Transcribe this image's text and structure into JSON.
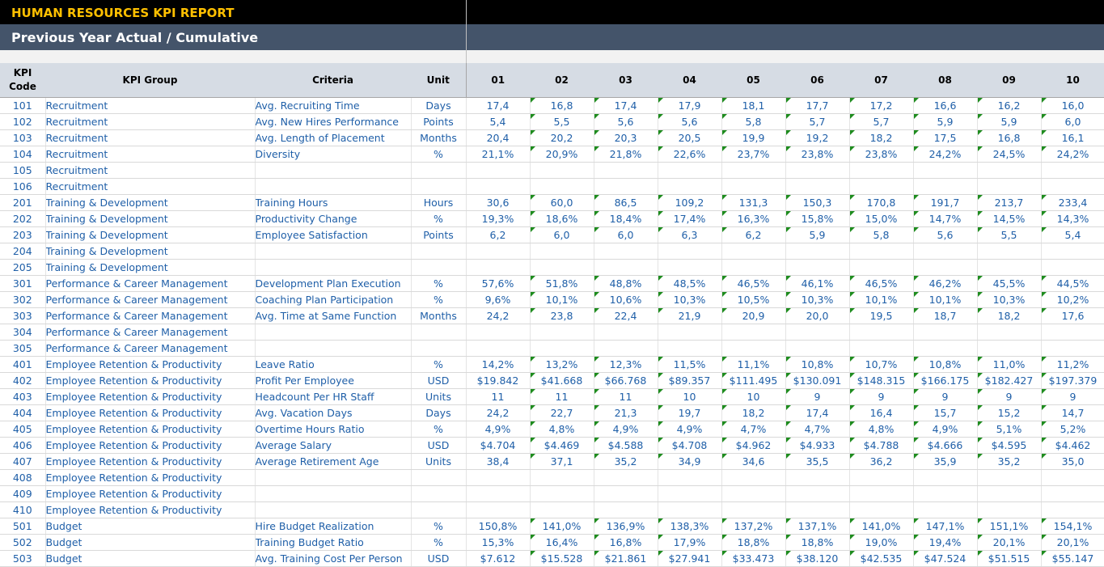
{
  "report": {
    "title": "HUMAN RESOURCES KPI REPORT",
    "subtitle": "Previous Year Actual / Cumulative"
  },
  "colors": {
    "banner_dark": "#000000",
    "title_accent": "#ffc000",
    "subtitle_bg": "#44546a",
    "header_bg": "#d6dce4",
    "cell_text": "#1f5fa8",
    "comment_marker": "#1e8c1e"
  },
  "table": {
    "headers": {
      "code": "KPI Code",
      "group": "KPI Group",
      "criteria": "Criteria",
      "unit": "Unit",
      "months": [
        "01",
        "02",
        "03",
        "04",
        "05",
        "06",
        "07",
        "08",
        "09",
        "10"
      ]
    },
    "rows": [
      {
        "code": "101",
        "group": "Recruitment",
        "criteria": "Avg. Recruiting Time",
        "unit": "Days",
        "values": [
          "17,4",
          "16,8",
          "17,4",
          "17,9",
          "18,1",
          "17,7",
          "17,2",
          "16,6",
          "16,2",
          "16,0"
        ]
      },
      {
        "code": "102",
        "group": "Recruitment",
        "criteria": "Avg. New Hires Performance",
        "unit": "Points",
        "values": [
          "5,4",
          "5,5",
          "5,6",
          "5,6",
          "5,8",
          "5,7",
          "5,7",
          "5,9",
          "5,9",
          "6,0"
        ]
      },
      {
        "code": "103",
        "group": "Recruitment",
        "criteria": "Avg. Length of Placement",
        "unit": "Months",
        "values": [
          "20,4",
          "20,2",
          "20,3",
          "20,5",
          "19,9",
          "19,2",
          "18,2",
          "17,5",
          "16,8",
          "16,1"
        ]
      },
      {
        "code": "104",
        "group": "Recruitment",
        "criteria": "Diversity",
        "unit": "%",
        "values": [
          "21,1%",
          "20,9%",
          "21,8%",
          "22,6%",
          "23,7%",
          "23,8%",
          "23,8%",
          "24,2%",
          "24,5%",
          "24,2%"
        ]
      },
      {
        "code": "105",
        "group": "Recruitment",
        "criteria": "",
        "unit": "",
        "values": [
          "",
          "",
          "",
          "",
          "",
          "",
          "",
          "",
          "",
          ""
        ]
      },
      {
        "code": "106",
        "group": "Recruitment",
        "criteria": "",
        "unit": "",
        "values": [
          "",
          "",
          "",
          "",
          "",
          "",
          "",
          "",
          "",
          ""
        ]
      },
      {
        "code": "201",
        "group": "Training & Development",
        "criteria": "Training Hours",
        "unit": "Hours",
        "values": [
          "30,6",
          "60,0",
          "86,5",
          "109,2",
          "131,3",
          "150,3",
          "170,8",
          "191,7",
          "213,7",
          "233,4"
        ]
      },
      {
        "code": "202",
        "group": "Training & Development",
        "criteria": "Productivity Change",
        "unit": "%",
        "values": [
          "19,3%",
          "18,6%",
          "18,4%",
          "17,4%",
          "16,3%",
          "15,8%",
          "15,0%",
          "14,7%",
          "14,5%",
          "14,3%"
        ]
      },
      {
        "code": "203",
        "group": "Training & Development",
        "criteria": "Employee Satisfaction",
        "unit": "Points",
        "values": [
          "6,2",
          "6,0",
          "6,0",
          "6,3",
          "6,2",
          "5,9",
          "5,8",
          "5,6",
          "5,5",
          "5,4"
        ]
      },
      {
        "code": "204",
        "group": "Training & Development",
        "criteria": "",
        "unit": "",
        "values": [
          "",
          "",
          "",
          "",
          "",
          "",
          "",
          "",
          "",
          ""
        ]
      },
      {
        "code": "205",
        "group": "Training & Development",
        "criteria": "",
        "unit": "",
        "values": [
          "",
          "",
          "",
          "",
          "",
          "",
          "",
          "",
          "",
          ""
        ]
      },
      {
        "code": "301",
        "group": "Performance & Career Management",
        "criteria": "Development Plan Execution",
        "unit": "%",
        "values": [
          "57,6%",
          "51,8%",
          "48,8%",
          "48,5%",
          "46,5%",
          "46,1%",
          "46,5%",
          "46,2%",
          "45,5%",
          "44,5%"
        ]
      },
      {
        "code": "302",
        "group": "Performance & Career Management",
        "criteria": "Coaching Plan Participation",
        "unit": "%",
        "values": [
          "9,6%",
          "10,1%",
          "10,6%",
          "10,3%",
          "10,5%",
          "10,3%",
          "10,1%",
          "10,1%",
          "10,3%",
          "10,2%"
        ]
      },
      {
        "code": "303",
        "group": "Performance & Career Management",
        "criteria": "Avg. Time at Same Function",
        "unit": "Months",
        "values": [
          "24,2",
          "23,8",
          "22,4",
          "21,9",
          "20,9",
          "20,0",
          "19,5",
          "18,7",
          "18,2",
          "17,6"
        ]
      },
      {
        "code": "304",
        "group": "Performance & Career Management",
        "criteria": "",
        "unit": "",
        "values": [
          "",
          "",
          "",
          "",
          "",
          "",
          "",
          "",
          "",
          ""
        ]
      },
      {
        "code": "305",
        "group": "Performance & Career Management",
        "criteria": "",
        "unit": "",
        "values": [
          "",
          "",
          "",
          "",
          "",
          "",
          "",
          "",
          "",
          ""
        ]
      },
      {
        "code": "401",
        "group": "Employee Retention & Productivity",
        "criteria": "Leave Ratio",
        "unit": "%",
        "values": [
          "14,2%",
          "13,2%",
          "12,3%",
          "11,5%",
          "11,1%",
          "10,8%",
          "10,7%",
          "10,8%",
          "11,0%",
          "11,2%"
        ]
      },
      {
        "code": "402",
        "group": "Employee Retention & Productivity",
        "criteria": "Profit Per Employee",
        "unit": "USD",
        "values": [
          "$19.842",
          "$41.668",
          "$66.768",
          "$89.357",
          "$111.495",
          "$130.091",
          "$148.315",
          "$166.175",
          "$182.427",
          "$197.379"
        ]
      },
      {
        "code": "403",
        "group": "Employee Retention & Productivity",
        "criteria": "Headcount Per HR Staff",
        "unit": "Units",
        "values": [
          "11",
          "11",
          "11",
          "10",
          "10",
          "9",
          "9",
          "9",
          "9",
          "9"
        ]
      },
      {
        "code": "404",
        "group": "Employee Retention & Productivity",
        "criteria": "Avg. Vacation Days",
        "unit": "Days",
        "values": [
          "24,2",
          "22,7",
          "21,3",
          "19,7",
          "18,2",
          "17,4",
          "16,4",
          "15,7",
          "15,2",
          "14,7"
        ]
      },
      {
        "code": "405",
        "group": "Employee Retention & Productivity",
        "criteria": "Overtime Hours Ratio",
        "unit": "%",
        "values": [
          "4,9%",
          "4,8%",
          "4,9%",
          "4,9%",
          "4,7%",
          "4,7%",
          "4,8%",
          "4,9%",
          "5,1%",
          "5,2%"
        ]
      },
      {
        "code": "406",
        "group": "Employee Retention & Productivity",
        "criteria": "Average Salary",
        "unit": "USD",
        "values": [
          "$4.704",
          "$4.469",
          "$4.588",
          "$4.708",
          "$4.962",
          "$4.933",
          "$4.788",
          "$4.666",
          "$4.595",
          "$4.462"
        ]
      },
      {
        "code": "407",
        "group": "Employee Retention & Productivity",
        "criteria": "Average Retirement Age",
        "unit": "Units",
        "values": [
          "38,4",
          "37,1",
          "35,2",
          "34,9",
          "34,6",
          "35,5",
          "36,2",
          "35,9",
          "35,2",
          "35,0"
        ]
      },
      {
        "code": "408",
        "group": "Employee Retention & Productivity",
        "criteria": "",
        "unit": "",
        "values": [
          "",
          "",
          "",
          "",
          "",
          "",
          "",
          "",
          "",
          ""
        ]
      },
      {
        "code": "409",
        "group": "Employee Retention & Productivity",
        "criteria": "",
        "unit": "",
        "values": [
          "",
          "",
          "",
          "",
          "",
          "",
          "",
          "",
          "",
          ""
        ]
      },
      {
        "code": "410",
        "group": "Employee Retention & Productivity",
        "criteria": "",
        "unit": "",
        "values": [
          "",
          "",
          "",
          "",
          "",
          "",
          "",
          "",
          "",
          ""
        ]
      },
      {
        "code": "501",
        "group": "Budget",
        "criteria": "Hire Budget Realization",
        "unit": "%",
        "values": [
          "150,8%",
          "141,0%",
          "136,9%",
          "138,3%",
          "137,2%",
          "137,1%",
          "141,0%",
          "147,1%",
          "151,1%",
          "154,1%"
        ]
      },
      {
        "code": "502",
        "group": "Budget",
        "criteria": "Training Budget Ratio",
        "unit": "%",
        "values": [
          "15,3%",
          "16,4%",
          "16,8%",
          "17,9%",
          "18,8%",
          "18,8%",
          "19,0%",
          "19,4%",
          "20,1%",
          "20,1%"
        ]
      },
      {
        "code": "503",
        "group": "Budget",
        "criteria": "Avg. Training Cost Per Person",
        "unit": "USD",
        "values": [
          "$7.612",
          "$15.528",
          "$21.861",
          "$27.941",
          "$33.473",
          "$38.120",
          "$42.535",
          "$47.524",
          "$51.515",
          "$55.147"
        ]
      }
    ]
  }
}
